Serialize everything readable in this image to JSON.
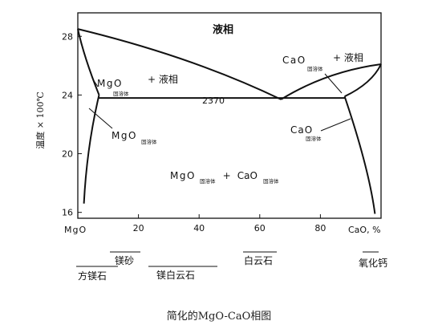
{
  "chart_data": {
    "type": "phase-diagram",
    "title": "",
    "caption": "简化的MgO-CaO相图",
    "y_axis": {
      "label": "温度 × 100℃",
      "ticks": [
        "28",
        "24",
        "20",
        "16"
      ],
      "tick_values": [
        28,
        24,
        20,
        16
      ],
      "range": [
        15.6,
        29.6
      ]
    },
    "x_axis": {
      "ticks": [
        "20",
        "40",
        "60",
        "80"
      ],
      "tick_values": [
        20,
        40,
        60,
        80
      ],
      "left_label": "MgO",
      "right_label": "CaO, %",
      "range": [
        0,
        100
      ]
    },
    "regions": {
      "liquid": "液相",
      "mgo_ss_liquid": {
        "main": "MgO",
        "sub": "固溶体",
        "suffix": "+ 液相"
      },
      "cao_ss_liquid": {
        "main": "CaO",
        "sub": "固溶体",
        "suffix": "+ 液相"
      },
      "mgo_ss": {
        "main": "MgO",
        "sub": "固溶体"
      },
      "cao_ss": {
        "main": "CaO",
        "sub": "固溶体"
      },
      "two_solid": {
        "main1": "MgO",
        "sub1": "固溶体",
        "plus": "+",
        "main2": "CaO",
        "sub2": "固溶体"
      }
    },
    "eutectic": {
      "label": "2370",
      "composition": 67,
      "temperature": 23.7
    },
    "boundaries": {
      "mgo_liquidus": [
        [
          0,
          28.5
        ],
        [
          67,
          23.7
        ]
      ],
      "cao_liquidus": [
        [
          67,
          23.7
        ],
        [
          100,
          26.1
        ]
      ],
      "mgo_solidus": [
        [
          0,
          28.5
        ],
        [
          7,
          24.0
        ]
      ],
      "cao_solidus": [
        [
          88,
          23.9
        ],
        [
          100,
          26.1
        ]
      ],
      "mgo_solvus": [
        [
          7,
          24.0
        ],
        [
          2,
          16.6
        ]
      ],
      "cao_solvus": [
        [
          88,
          23.9
        ],
        [
          98,
          15.9
        ]
      ],
      "eutectic_line": [
        [
          7,
          23.8
        ],
        [
          88,
          23.8
        ]
      ]
    },
    "materials": [
      "方镁石",
      "镁砂",
      "镁白云石",
      "白云石",
      "氧化钙"
    ]
  }
}
